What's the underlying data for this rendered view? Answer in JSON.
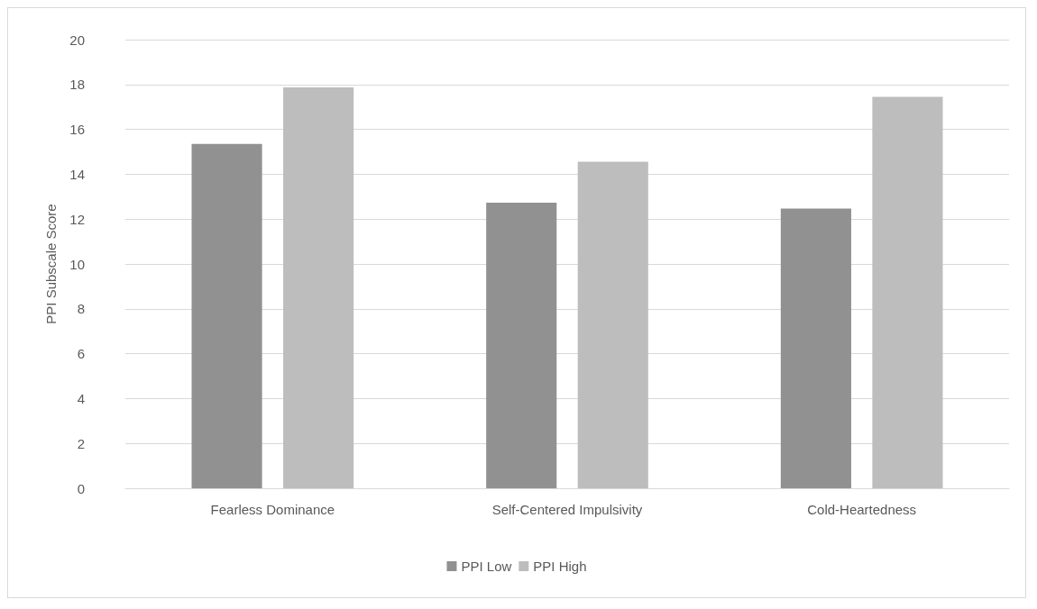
{
  "chart_data": {
    "type": "bar",
    "ylabel": "PPI Subscale Score",
    "categories": [
      "Fearless Dominance",
      "Self-Centered Impulsivity",
      "Cold-Heartedness"
    ],
    "series": [
      {
        "name": "PPI Low",
        "color": "#919191",
        "values": [
          15.35,
          12.73,
          12.47
        ]
      },
      {
        "name": "PPI High",
        "color": "#bdbdbd",
        "values": [
          17.87,
          14.56,
          17.45
        ]
      }
    ],
    "ylim": [
      0,
      20
    ],
    "yticks": [
      0,
      2,
      4,
      6,
      8,
      10,
      12,
      14,
      16,
      18,
      20
    ],
    "grid": "y",
    "legend": "bottom"
  }
}
